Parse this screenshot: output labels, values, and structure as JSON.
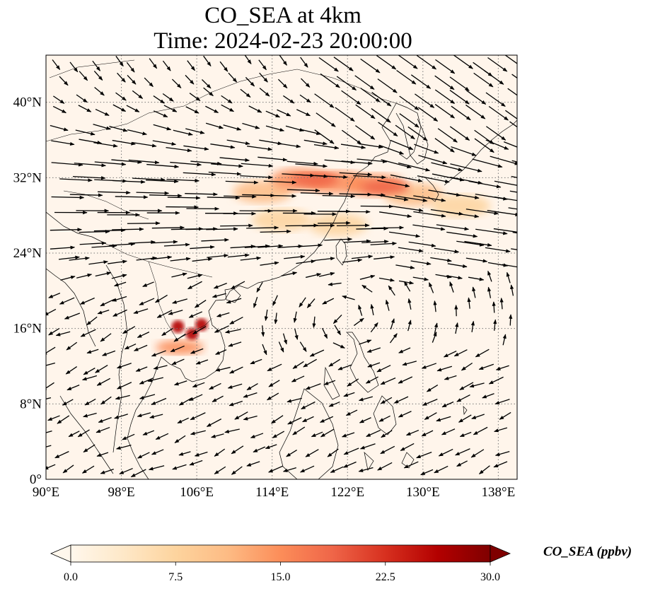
{
  "title": {
    "line1": "CO_SEA at 4km",
    "line2": "Time: 2024-02-23 20:00:00"
  },
  "map": {
    "projection": "PlateCarree",
    "lon_range": [
      90,
      140
    ],
    "lat_range": [
      0,
      45
    ],
    "lon_ticks": [
      "90°E",
      "98°E",
      "106°E",
      "114°E",
      "122°E",
      "130°E",
      "138°E"
    ],
    "lon_tick_values": [
      90,
      98,
      106,
      114,
      122,
      130,
      138
    ],
    "lat_ticks": [
      "0°",
      "8°N",
      "16°N",
      "24°N",
      "32°N",
      "40°N"
    ],
    "lat_tick_values": [
      0,
      8,
      16,
      24,
      32,
      40
    ],
    "gridlines": "dotted",
    "background_color": "#fff5eb"
  },
  "colorbar": {
    "label": "CO_SEA (ppbv)",
    "ticks": [
      "0.0",
      "7.5",
      "15.0",
      "22.5",
      "30.0"
    ],
    "range": [
      0,
      30
    ],
    "colormap": "OrRd",
    "colors": [
      "#fff7ec",
      "#fee8c8",
      "#fdd49e",
      "#fdbb84",
      "#fc8d59",
      "#ef6548",
      "#d7301f",
      "#b30000",
      "#7f0000"
    ],
    "extend": "both"
  },
  "chart_data": {
    "type": "heatmap",
    "variable": "CO_SEA",
    "units": "ppbv",
    "level": "4km",
    "time": "2024-02-23 20:00:00",
    "hotspots": [
      {
        "lon": 104,
        "lat": 16.2,
        "value": 27
      },
      {
        "lon": 105.5,
        "lat": 15.4,
        "value": 28
      },
      {
        "lon": 106.5,
        "lat": 16.4,
        "value": 25
      },
      {
        "lon": 104.2,
        "lat": 14,
        "value": 16
      },
      {
        "lon": 118.5,
        "lat": 31.8,
        "value": 18
      },
      {
        "lon": 126,
        "lat": 31,
        "value": 17
      }
    ],
    "plume_band": [
      {
        "lon": 113,
        "lat": 30.5,
        "value": 10
      },
      {
        "lon": 117,
        "lat": 31.8,
        "value": 16
      },
      {
        "lon": 121,
        "lat": 31.5,
        "value": 15
      },
      {
        "lon": 125,
        "lat": 31.2,
        "value": 15
      },
      {
        "lon": 129,
        "lat": 30.2,
        "value": 10
      },
      {
        "lon": 134,
        "lat": 29,
        "value": 7
      },
      {
        "lon": 121,
        "lat": 27,
        "value": 9
      },
      {
        "lon": 115,
        "lat": 27.5,
        "value": 6
      }
    ],
    "wind": "strong westerly jet across 22°N–40°N; weak easterly/northeasterly flow south of 20°N"
  }
}
